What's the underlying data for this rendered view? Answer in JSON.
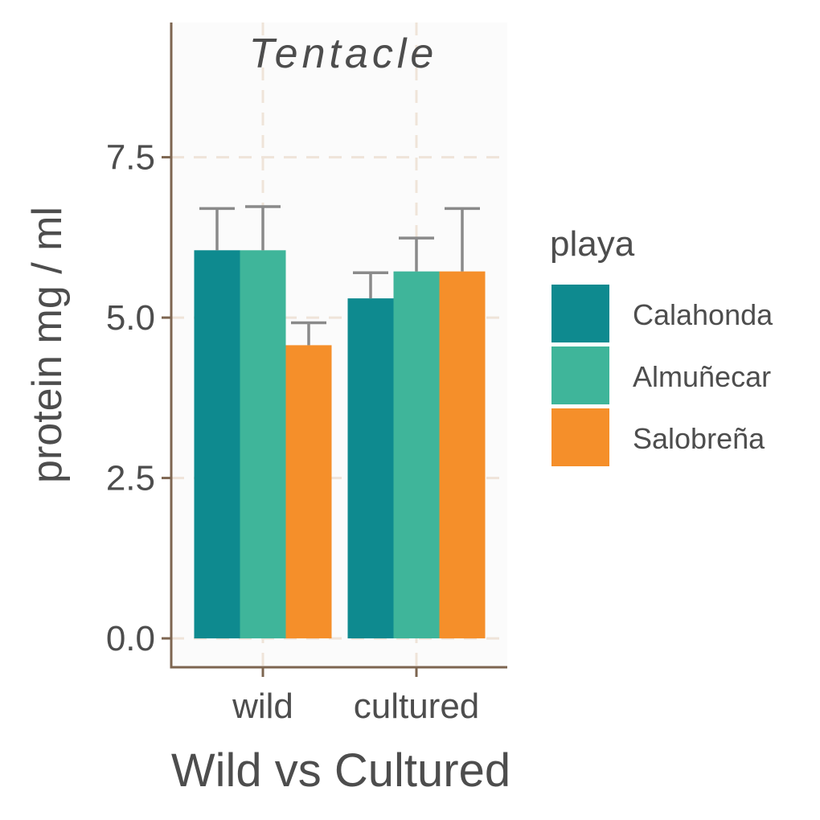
{
  "chart_data": {
    "type": "bar",
    "title": "Tentacle",
    "xlabel": "Wild vs Cultured",
    "ylabel": "protein mg / ml",
    "categories": [
      "wild",
      "cultured"
    ],
    "ylim": [
      -0.45,
      9.6
    ],
    "yticks": [
      "0.0",
      "2.5",
      "5.0",
      "7.5"
    ],
    "ytick_values": [
      0,
      2.5,
      5,
      7.5
    ],
    "grid": true,
    "legend_title": "playa",
    "legend_position": "right",
    "series": [
      {
        "name": "Calahonda",
        "color": "#0e8a8f",
        "values": [
          6.05,
          5.3
        ],
        "errors": [
          0.65,
          0.4
        ]
      },
      {
        "name": "Almuñecar",
        "color": "#3fb59a",
        "values": [
          6.05,
          5.72
        ],
        "errors": [
          0.68,
          0.52
        ]
      },
      {
        "name": "Salobreña",
        "color": "#f58f2a",
        "values": [
          4.57,
          5.72
        ],
        "errors": [
          0.35,
          0.98
        ]
      }
    ]
  }
}
